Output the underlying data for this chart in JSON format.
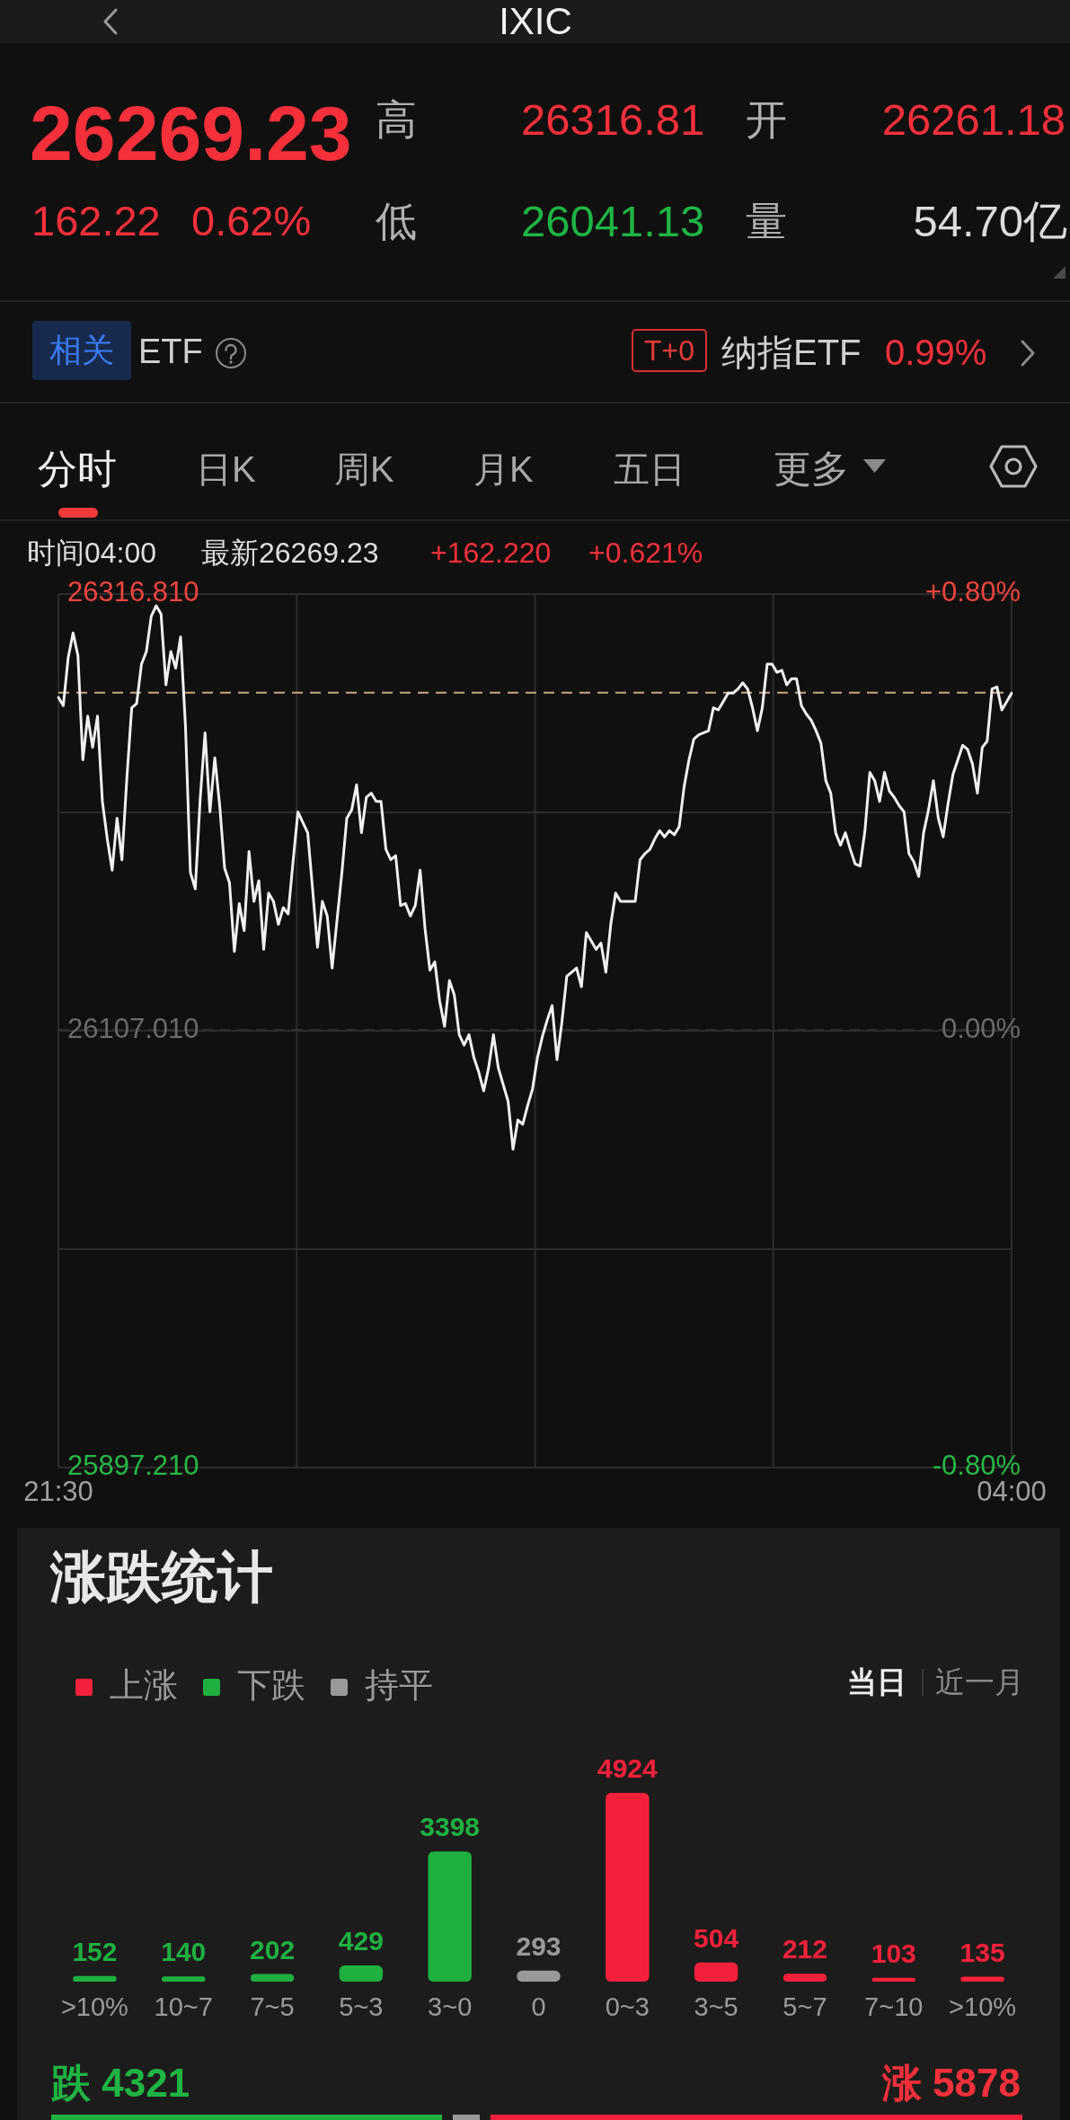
{
  "chart_data": [
    {
      "type": "other",
      "title": "IXIC",
      "annotations": [
        "26269.23",
        "高",
        "26316.81",
        "开",
        "26261.18",
        "162.22",
        "0.62%",
        "低",
        "26041.13",
        "量",
        "54.70亿",
        "相关",
        "ETF",
        "T+0",
        "纳指ETF",
        "0.99%",
        "分时",
        "日K",
        "周K",
        "月K",
        "五日",
        "更多"
      ]
    },
    {
      "type": "line",
      "color": "#f0f0f0",
      "marker": "none",
      "grid": true,
      "categories": [
        "21:30",
        null,
        null,
        null,
        null,
        null,
        null,
        null,
        null,
        null,
        null,
        null,
        null,
        null,
        null,
        null,
        null,
        null,
        null,
        null,
        null,
        null,
        null,
        null,
        null,
        null,
        null,
        null,
        null,
        null,
        null,
        null,
        null,
        null,
        null,
        null,
        null,
        null,
        null,
        null,
        null,
        null,
        null,
        null,
        null,
        null,
        null,
        null,
        null,
        null,
        null,
        null,
        null,
        null,
        null,
        null,
        null,
        null,
        null,
        null,
        null,
        null,
        null,
        null,
        null,
        null,
        null,
        null,
        null,
        null,
        null,
        null,
        null,
        null,
        null,
        null,
        null,
        null,
        null,
        null,
        null,
        null,
        null,
        null,
        null,
        null,
        null,
        null,
        null,
        null,
        null,
        null,
        null,
        null,
        null,
        null,
        null,
        null,
        null,
        null,
        null,
        null,
        null,
        null,
        null,
        null,
        null,
        null,
        null,
        null,
        null,
        null,
        null,
        null,
        null,
        null,
        null,
        null,
        null,
        null,
        null,
        null,
        null,
        null,
        null,
        null,
        null,
        null,
        null,
        null,
        null,
        null,
        null,
        null,
        null,
        null,
        null,
        null,
        null,
        null,
        null,
        null,
        null,
        null,
        null,
        null,
        null,
        null,
        null,
        null,
        null,
        null,
        null,
        null,
        null,
        null,
        null,
        null,
        null,
        null,
        null,
        null,
        null,
        null,
        null,
        null,
        null,
        null,
        null,
        null,
        null,
        null,
        null,
        null,
        null,
        null,
        null,
        null,
        null,
        null,
        null,
        null,
        null,
        null,
        null,
        null,
        null,
        null,
        null,
        null,
        null,
        null,
        null,
        null,
        null,
        "04:00"
      ],
      "values": [
        26267,
        26263,
        26286,
        26298,
        26287,
        26237,
        26258,
        26243,
        26258,
        26217,
        26199,
        26184,
        26209,
        26189,
        26228,
        26262,
        26264,
        26283,
        26289,
        26306,
        26311,
        26307,
        26273,
        26289,
        26281,
        26296,
        26253,
        26183,
        26175,
        26218,
        26250,
        26212,
        26238,
        26215,
        26185,
        26178,
        26145,
        26168,
        26155,
        26193,
        26169,
        26179,
        26146,
        26173,
        26169,
        26158,
        26166,
        26163,
        26188,
        26212,
        26207,
        26202,
        26175,
        26147,
        26169,
        26162,
        26137,
        26160,
        26183,
        26209,
        26213,
        26225,
        26202,
        26219,
        26221,
        26217,
        26217,
        26194,
        26189,
        26191,
        26167,
        26168,
        26162,
        26167,
        26184,
        26156,
        26136,
        26140,
        26121,
        26109,
        26131,
        26124,
        26105,
        26100,
        26105,
        26094,
        26087,
        26078,
        26089,
        26105,
        26089,
        26081,
        26073,
        26050,
        26064,
        26062,
        26071,
        26079,
        26094,
        26104,
        26112,
        26119,
        26093,
        26111,
        26133,
        26135,
        26137,
        26128,
        26154,
        26150,
        26146,
        26149,
        26135,
        26158,
        26173,
        26169,
        26169,
        26169,
        26169,
        26189,
        26192,
        26194,
        26199,
        26203,
        26200,
        26203,
        26201,
        26205,
        26224,
        26237,
        26247,
        26249,
        26250,
        26251,
        26262,
        26261,
        26265,
        26269,
        26269,
        26271,
        26274,
        26271,
        26262,
        26251,
        26262,
        26283,
        26283,
        26279,
        26280,
        26273,
        26276,
        26276,
        26263,
        26259,
        26256,
        26251,
        26245,
        26227,
        26221,
        26202,
        26196,
        26202,
        26194,
        26187,
        26186,
        26203,
        26231,
        26227,
        26217,
        26231,
        26222,
        26219,
        26215,
        26212,
        26192,
        26188,
        26181,
        26202,
        26213,
        26227,
        26209,
        26200,
        26216,
        26230,
        26237,
        26244,
        26242,
        26235,
        26221,
        26243,
        26246,
        26271,
        26272,
        26261,
        26265,
        26269
      ],
      "ylim": [
        25897.21,
        26316.81
      ],
      "yticks": [
        {
          "value": 26316.81,
          "label": "26316.810"
        },
        {
          "value": 26211.91,
          "label": null
        },
        {
          "value": 26107.01,
          "label": "26107.010"
        },
        {
          "value": 26002.11,
          "label": null
        },
        {
          "value": 25897.21,
          "label": "25897.210"
        }
      ],
      "y2lim": [
        -0.8,
        0.8
      ],
      "y2ticks": [
        {
          "value": 0.8,
          "label": "+0.80%"
        },
        {
          "value": 0,
          "label": "0.00%"
        },
        {
          "value": -0.8,
          "label": "-0.80%"
        }
      ],
      "ref_lines": [
        {
          "axis": "y",
          "value": 26269.23,
          "color": "#c8a77c",
          "line_style": "dashed"
        },
        {
          "axis": "y",
          "value": 26107.01,
          "color": "#8a8a8a",
          "line_style": "dashed"
        }
      ],
      "annotations": [
        "时间04:00",
        "最新26269.23",
        "+162.220",
        "+0.621%"
      ]
    },
    {
      "type": "bar",
      "title": "涨跌统计",
      "categories": [
        ">10%",
        "10~7",
        "7~5",
        "5~3",
        "3~0",
        "0",
        "0~3",
        "3~5",
        "5~7",
        "7~10",
        ">10%"
      ],
      "series": [
        {
          "name": "上涨",
          "color": "#f5213a",
          "values": [
            null,
            null,
            null,
            null,
            null,
            null,
            4924,
            504,
            212,
            103,
            135
          ]
        },
        {
          "name": "下跌",
          "color": "#1fb040",
          "values": [
            152,
            140,
            202,
            429,
            3398,
            null,
            null,
            null,
            null,
            null,
            null
          ]
        },
        {
          "name": "持平",
          "color": "#9a9a9a",
          "values": [
            null,
            null,
            null,
            null,
            null,
            293,
            null,
            null,
            null,
            null,
            null
          ]
        }
      ],
      "stacked": true,
      "data_labels": true,
      "legend": "top left",
      "tick_labels": "x",
      "annotations": [
        "当日",
        "近一月",
        "跌 4321",
        "涨 5878"
      ]
    }
  ]
}
